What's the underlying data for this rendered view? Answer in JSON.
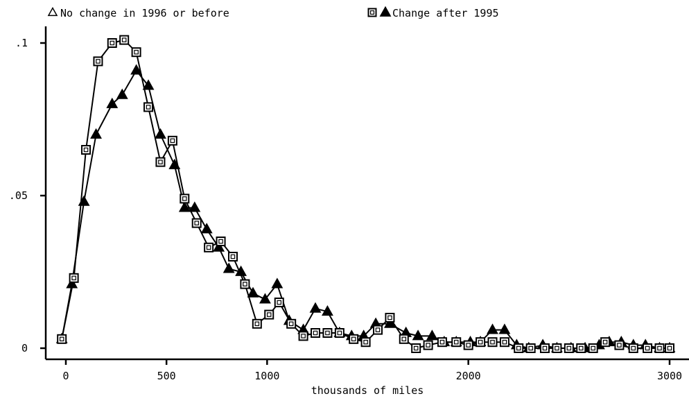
{
  "chart_data": {
    "type": "line",
    "title": "",
    "xlabel": "thousands of miles",
    "ylabel": "",
    "xlim": [
      -50,
      3050
    ],
    "ylim": [
      -0.004,
      0.104
    ],
    "x_ticks": [
      0,
      500,
      1000,
      2000,
      3000
    ],
    "x_tick_labels": [
      "0",
      "500",
      "1000",
      "2000",
      "3000"
    ],
    "y_ticks": [
      0,
      0.05,
      0.1
    ],
    "y_tick_labels": [
      "0",
      ".05",
      ".1"
    ],
    "grid": false,
    "legend_position": "top",
    "series": [
      {
        "name": "No change in 1996 or before",
        "marker": "triangle",
        "points": [
          [
            -20,
            0.003
          ],
          [
            30,
            0.021
          ],
          [
            90,
            0.048
          ],
          [
            150,
            0.07
          ],
          [
            230,
            0.08
          ],
          [
            280,
            0.083
          ],
          [
            350,
            0.091
          ],
          [
            410,
            0.086
          ],
          [
            470,
            0.07
          ],
          [
            540,
            0.06
          ],
          [
            590,
            0.046
          ],
          [
            640,
            0.046
          ],
          [
            700,
            0.039
          ],
          [
            760,
            0.033
          ],
          [
            810,
            0.026
          ],
          [
            870,
            0.025
          ],
          [
            930,
            0.018
          ],
          [
            990,
            0.016
          ],
          [
            1050,
            0.021
          ],
          [
            1110,
            0.009
          ],
          [
            1180,
            0.006
          ],
          [
            1240,
            0.013
          ],
          [
            1300,
            0.012
          ],
          [
            1360,
            0.005
          ],
          [
            1420,
            0.004
          ],
          [
            1480,
            0.004
          ],
          [
            1540,
            0.008
          ],
          [
            1610,
            0.008
          ],
          [
            1690,
            0.005
          ],
          [
            1750,
            0.004
          ],
          [
            1820,
            0.004
          ],
          [
            1880,
            0.002
          ],
          [
            1940,
            0.002
          ],
          [
            2010,
            0.002
          ],
          [
            2060,
            0.002
          ],
          [
            2120,
            0.006
          ],
          [
            2180,
            0.006
          ],
          [
            2240,
            0.001
          ],
          [
            2300,
            0.0
          ],
          [
            2370,
            0.001
          ],
          [
            2440,
            0.0
          ],
          [
            2510,
            0.0
          ],
          [
            2580,
            0.0
          ],
          [
            2650,
            0.001
          ],
          [
            2700,
            0.002
          ],
          [
            2760,
            0.002
          ],
          [
            2820,
            0.001
          ],
          [
            2880,
            0.001
          ],
          [
            2950,
            0.0
          ],
          [
            3000,
            0.0
          ]
        ]
      },
      {
        "name": "Change after 1995",
        "marker": "square",
        "points": [
          [
            -20,
            0.003
          ],
          [
            40,
            0.023
          ],
          [
            100,
            0.065
          ],
          [
            160,
            0.094
          ],
          [
            230,
            0.1
          ],
          [
            290,
            0.101
          ],
          [
            350,
            0.097
          ],
          [
            410,
            0.079
          ],
          [
            470,
            0.061
          ],
          [
            530,
            0.068
          ],
          [
            590,
            0.049
          ],
          [
            650,
            0.041
          ],
          [
            710,
            0.033
          ],
          [
            770,
            0.035
          ],
          [
            830,
            0.03
          ],
          [
            890,
            0.021
          ],
          [
            950,
            0.008
          ],
          [
            1010,
            0.011
          ],
          [
            1060,
            0.015
          ],
          [
            1120,
            0.008
          ],
          [
            1180,
            0.004
          ],
          [
            1240,
            0.005
          ],
          [
            1300,
            0.005
          ],
          [
            1360,
            0.005
          ],
          [
            1430,
            0.003
          ],
          [
            1490,
            0.002
          ],
          [
            1550,
            0.006
          ],
          [
            1610,
            0.01
          ],
          [
            1680,
            0.003
          ],
          [
            1740,
            0.0
          ],
          [
            1800,
            0.001
          ],
          [
            1870,
            0.002
          ],
          [
            1940,
            0.002
          ],
          [
            2000,
            0.001
          ],
          [
            2060,
            0.002
          ],
          [
            2120,
            0.002
          ],
          [
            2180,
            0.002
          ],
          [
            2250,
            0.0
          ],
          [
            2310,
            0.0
          ],
          [
            2380,
            0.0
          ],
          [
            2440,
            0.0
          ],
          [
            2500,
            0.0
          ],
          [
            2560,
            0.0
          ],
          [
            2620,
            0.0
          ],
          [
            2680,
            0.002
          ],
          [
            2750,
            0.001
          ],
          [
            2820,
            0.0
          ],
          [
            2890,
            0.0
          ],
          [
            2950,
            0.0
          ],
          [
            3000,
            0.0
          ]
        ]
      }
    ]
  }
}
